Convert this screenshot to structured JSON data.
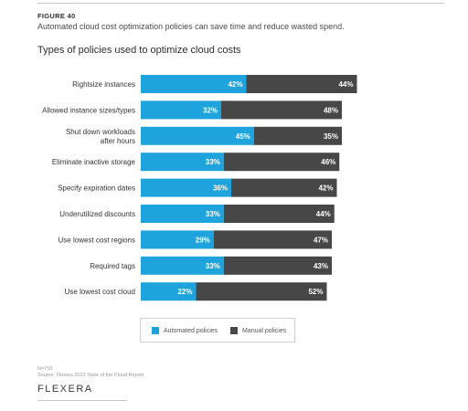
{
  "figure": {
    "label": "FIGURE 40",
    "subtitle": "Automated cloud cost optimization policies can save time and reduce wasted spend."
  },
  "colors": {
    "automated": "#1fa3dc",
    "manual": "#474747",
    "bar_text": "#ffffff",
    "label_text": "#333333"
  },
  "chart_data": {
    "type": "bar",
    "orientation": "horizontal",
    "stacked": true,
    "title": "Types of policies used to optimize cloud costs",
    "categories": [
      [
        "Rightsize instances"
      ],
      [
        "Allowed instance sizes/types"
      ],
      [
        "Shut down workloads",
        "after hours"
      ],
      [
        "Eliminate inactive storage"
      ],
      [
        "Specify expiration dates"
      ],
      [
        "Underutilized discounts"
      ],
      [
        "Use lowest cost regions"
      ],
      [
        "Required tags"
      ],
      [
        "Use lowest cost cloud"
      ]
    ],
    "series": [
      {
        "name": "Automated policies",
        "values": [
          42,
          32,
          45,
          33,
          36,
          33,
          29,
          33,
          22
        ]
      },
      {
        "name": "Manual policies",
        "values": [
          44,
          48,
          35,
          46,
          42,
          44,
          47,
          43,
          52
        ]
      }
    ],
    "value_suffix": "%",
    "xlim": [
      0,
      100
    ],
    "grid": false,
    "legend_position": "bottom"
  },
  "footer": {
    "n": "N=753",
    "source": "Source: Flexera 2022 State of the Cloud Report",
    "brand": "FLEXERA"
  }
}
